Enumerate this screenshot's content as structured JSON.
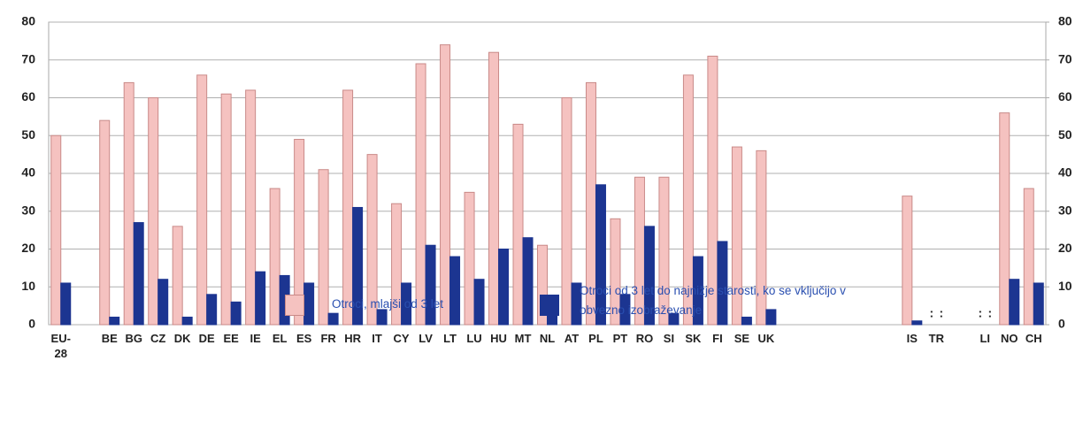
{
  "chart_data": {
    "type": "bar",
    "categories": [
      "EU-28",
      null,
      "BE",
      "BG",
      "CZ",
      "DK",
      "DE",
      "EE",
      "IE",
      "EL",
      "ES",
      "FR",
      "HR",
      "IT",
      "CY",
      "LV",
      "LT",
      "LU",
      "HU",
      "MT",
      "NL",
      "AT",
      "PL",
      "PT",
      "RO",
      "SI",
      "SK",
      "FI",
      "SE",
      "UK",
      null,
      null,
      null,
      null,
      null,
      "IS",
      "TR",
      null,
      "LI",
      "NO",
      "CH"
    ],
    "series": [
      {
        "name": "Otroci, mlajši od 3 let",
        "color": "#f5c2c0",
        "values": [
          50,
          null,
          54,
          64,
          60,
          26,
          66,
          61,
          62,
          36,
          49,
          41,
          62,
          45,
          32,
          69,
          74,
          35,
          72,
          53,
          21,
          60,
          64,
          28,
          39,
          39,
          66,
          71,
          47,
          46,
          null,
          null,
          null,
          null,
          null,
          34,
          null,
          null,
          null,
          56,
          36
        ],
        "value_labels": [
          null,
          null,
          null,
          null,
          null,
          null,
          null,
          null,
          null,
          null,
          null,
          null,
          null,
          null,
          null,
          null,
          null,
          null,
          null,
          null,
          null,
          null,
          null,
          null,
          null,
          null,
          null,
          null,
          null,
          null,
          null,
          null,
          null,
          null,
          null,
          null,
          ":",
          null,
          ":",
          null,
          null
        ]
      },
      {
        "name": "Otroci od 3 let do najnižje starosti, ko se vključijo v obvezno izobraževanje",
        "color": "#1c3591",
        "values": [
          11,
          null,
          2,
          27,
          12,
          2,
          8,
          6,
          14,
          13,
          11,
          3,
          31,
          4,
          11,
          21,
          18,
          12,
          20,
          23,
          5,
          11,
          37,
          8,
          26,
          3,
          18,
          22,
          2,
          4,
          null,
          null,
          null,
          null,
          null,
          1,
          null,
          null,
          null,
          12,
          11
        ],
        "value_labels": [
          null,
          null,
          null,
          null,
          null,
          null,
          null,
          null,
          null,
          null,
          null,
          null,
          null,
          null,
          null,
          null,
          null,
          null,
          null,
          null,
          null,
          null,
          null,
          null,
          null,
          null,
          null,
          null,
          null,
          null,
          null,
          null,
          null,
          null,
          null,
          null,
          ":",
          null,
          ":",
          null,
          null
        ]
      }
    ],
    "ylim": [
      0,
      80
    ],
    "yticks": [
      0,
      10,
      20,
      30,
      40,
      50,
      60,
      70,
      80
    ],
    "y2lim": [
      0,
      80
    ],
    "y2ticks": [
      0,
      10,
      20,
      30,
      40,
      50,
      60,
      70,
      80
    ],
    "grid": true
  }
}
